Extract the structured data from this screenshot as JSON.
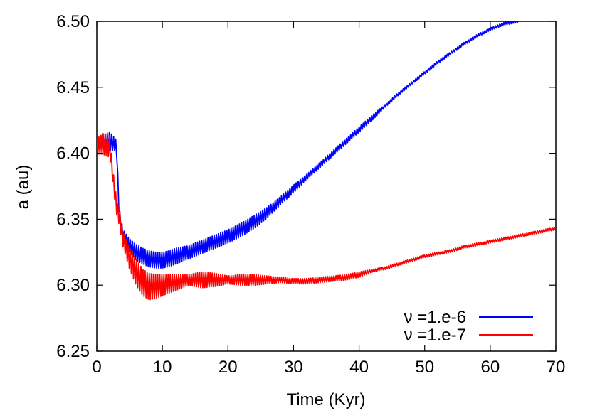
{
  "chart_data": {
    "type": "line",
    "title": "",
    "xlabel": "Time (Kyr)",
    "ylabel": "a (au)",
    "xlim": [
      0,
      70
    ],
    "ylim": [
      6.25,
      6.5
    ],
    "x_ticks": [
      "0",
      "10",
      "20",
      "30",
      "40",
      "50",
      "60",
      "70"
    ],
    "y_ticks": [
      "6.25",
      "6.30",
      "6.35",
      "6.40",
      "6.45",
      "6.50"
    ],
    "grid": false,
    "legend_position": "bottom-right",
    "series": [
      {
        "name": "ν =1.e-6",
        "color": "#0000ff",
        "x": [
          0,
          1,
          2,
          3,
          3.4,
          4,
          5,
          6,
          7,
          8,
          9,
          10,
          11,
          12,
          14,
          16,
          18,
          20,
          22,
          24,
          26,
          28,
          30,
          32,
          34,
          36,
          38,
          40,
          42,
          44,
          46,
          48,
          50,
          52,
          54,
          56,
          58,
          60,
          62,
          64,
          64.5
        ],
        "y": [
          6.405,
          6.408,
          6.409,
          6.406,
          6.355,
          6.338,
          6.33,
          6.325,
          6.322,
          6.32,
          6.319,
          6.319,
          6.32,
          6.322,
          6.325,
          6.329,
          6.333,
          6.337,
          6.342,
          6.348,
          6.355,
          6.364,
          6.373,
          6.382,
          6.391,
          6.4,
          6.409,
          6.418,
          6.427,
          6.436,
          6.445,
          6.453,
          6.461,
          6.469,
          6.476,
          6.483,
          6.489,
          6.494,
          6.498,
          6.5,
          6.5
        ],
        "oscillation": [
          0.004,
          0.006,
          0.007,
          0.004,
          0.004,
          0.004,
          0.005,
          0.006,
          0.006,
          0.006,
          0.006,
          0.006,
          0.006,
          0.006,
          0.005,
          0.005,
          0.005,
          0.005,
          0.005,
          0.005,
          0.004,
          0.003,
          0.003,
          0.002,
          0.002,
          0.002,
          0.002,
          0.002,
          0.002,
          0.001,
          0.001,
          0.001,
          0.001,
          0.001,
          0.001,
          0.001,
          0.001,
          0.001,
          0.001,
          0.001,
          0.0
        ]
      },
      {
        "name": "ν =1.e-7",
        "color": "#ff0000",
        "x": [
          0,
          1,
          2,
          2.5,
          3,
          3.5,
          4,
          5,
          6,
          7,
          8,
          9,
          10,
          11,
          12,
          14,
          16,
          18,
          20,
          22,
          24,
          26,
          28,
          30,
          32,
          34,
          36,
          38,
          40,
          42,
          44,
          46,
          48,
          50,
          52,
          54,
          56,
          58,
          60,
          62,
          64,
          66,
          68,
          70
        ],
        "y": [
          6.405,
          6.407,
          6.405,
          6.38,
          6.36,
          6.35,
          6.335,
          6.32,
          6.31,
          6.302,
          6.299,
          6.299,
          6.3,
          6.301,
          6.302,
          6.304,
          6.304,
          6.304,
          6.304,
          6.304,
          6.304,
          6.304,
          6.304,
          6.303,
          6.303,
          6.304,
          6.305,
          6.306,
          6.308,
          6.311,
          6.313,
          6.316,
          6.319,
          6.322,
          6.324,
          6.326,
          6.329,
          6.331,
          6.333,
          6.335,
          6.337,
          6.339,
          6.341,
          6.343
        ],
        "oscillation": [
          0.006,
          0.008,
          0.008,
          0.006,
          0.006,
          0.006,
          0.006,
          0.008,
          0.01,
          0.01,
          0.01,
          0.009,
          0.008,
          0.007,
          0.006,
          0.004,
          0.006,
          0.005,
          0.003,
          0.004,
          0.004,
          0.003,
          0.002,
          0.002,
          0.002,
          0.002,
          0.002,
          0.002,
          0.002,
          0.001,
          0.001,
          0.001,
          0.001,
          0.001,
          0.001,
          0.001,
          0.001,
          0.001,
          0.001,
          0.001,
          0.001,
          0.001,
          0.001,
          0.001
        ]
      }
    ]
  }
}
